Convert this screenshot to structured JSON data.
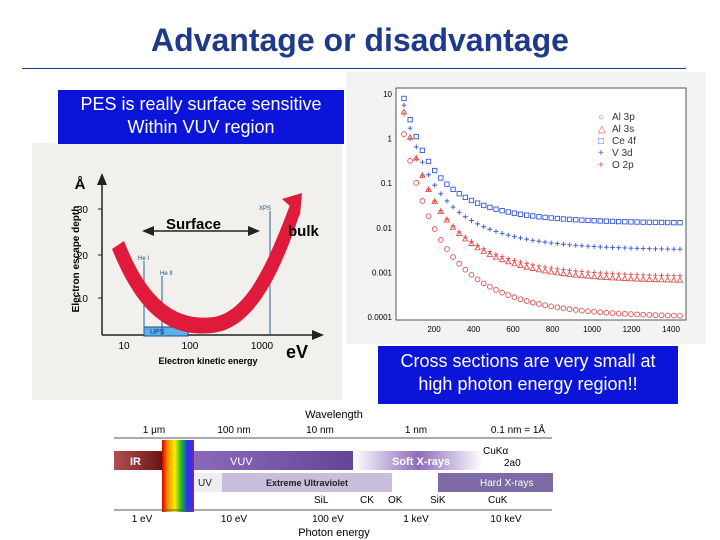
{
  "slide": {
    "title": "Advantage or disadvantage",
    "callout_left": {
      "line1": "PES is really surface sensitive",
      "line2": "Within VUV region"
    },
    "callout_right": {
      "line1": "Cross sections are very small at",
      "line2": "high photon energy region!!"
    }
  },
  "escape_depth": {
    "y_label_unit": "Å",
    "y_label": "Electron escape depth",
    "y_ticks": [
      "30",
      "20",
      "10"
    ],
    "x_ticks": [
      "10",
      "100",
      "1000"
    ],
    "x_unit": "eV",
    "x_label": "Electron kinetic energy",
    "surface_label": "Surface",
    "bulk_label": "bulk",
    "xps_label": "XPS",
    "ups_label": "UPS",
    "he1_label": "He I",
    "he2_label": "He II"
  },
  "cross_section": {
    "y_ticks": [
      "10",
      "1",
      "0.1",
      "0.01",
      "0.001",
      "0.0001"
    ],
    "x_ticks": [
      "200",
      "400",
      "600",
      "800",
      "1000",
      "1200",
      "1400"
    ],
    "legend": [
      {
        "symbol": "○",
        "label": "Al 3p",
        "color": "#e0504f"
      },
      {
        "symbol": "△",
        "label": "Al 3s",
        "color": "#e0504f"
      },
      {
        "symbol": "□",
        "label": "Ce 4f",
        "color": "#3355dd"
      },
      {
        "symbol": "+",
        "label": "V 3d",
        "color": "#3355dd"
      },
      {
        "symbol": "+",
        "label": "O 2p",
        "color": "#e0504f"
      }
    ]
  },
  "spectrum": {
    "wavelength_title": "Wavelength",
    "wavelength_ticks": [
      "1 μm",
      "100 nm",
      "10 nm",
      "1 nm"
    ],
    "nm_to_angstrom": "0.1 nm = 1Å",
    "cuk_alpha": "CuKα",
    "two_a0": "2a0",
    "bands": {
      "ir": "IR",
      "vuv": "VUV",
      "soft": "Soft X-rays",
      "uv": "UV",
      "euv": "Extreme Ultraviolet",
      "hard": "Hard X-rays"
    },
    "edges": {
      "si_l": "SiL",
      "c_k": "CK",
      "o_k": "OK",
      "si_k": "SiK",
      "cu_k": "CuK"
    },
    "energy_ticks": [
      "1 eV",
      "10 eV",
      "100 eV",
      "1 keV",
      "10 keV"
    ],
    "energy_title": "Photon energy"
  }
}
